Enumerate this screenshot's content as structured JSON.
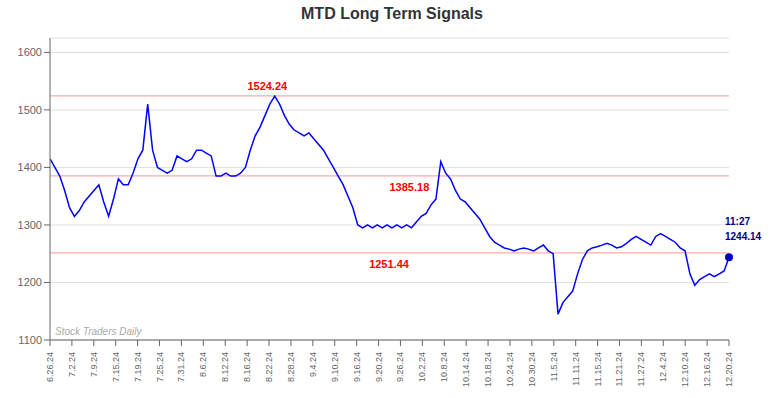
{
  "chart_data": {
    "type": "line",
    "title": "MTD Long Term Signals",
    "color": "blue",
    "grid": true,
    "x": [
      0,
      0.223,
      0.446,
      0.6691,
      0.8921,
      1.1151,
      1.3381,
      1.5612,
      1.7842,
      2.0072,
      2.2302,
      2.4532,
      2.6763,
      2.8993,
      3.1223,
      3.3453,
      3.5683,
      3.7914,
      4.0144,
      4.2374,
      4.4604,
      4.6835,
      4.9065,
      5.1295,
      5.3525,
      5.5755,
      5.7986,
      6.0216,
      6.2446,
      6.4676,
      6.6906,
      6.9137,
      7.1367,
      7.3597,
      7.5827,
      7.8058,
      8.0288,
      8.2518,
      8.4748,
      8.6978,
      8.9209,
      9.1439,
      9.3669,
      9.5899,
      9.8129,
      10.036,
      10.259,
      10.482,
      10.705,
      10.9281,
      11.1511,
      11.3741,
      11.5971,
      11.8201,
      12.0432,
      12.2662,
      12.4892,
      12.7122,
      12.9353,
      13.1583,
      13.3813,
      13.6043,
      13.8273,
      14.0504,
      14.2734,
      14.4964,
      14.7194,
      14.9424,
      15.1655,
      15.3885,
      15.6115,
      15.8345,
      16.0576,
      16.2806,
      16.5036,
      16.7266,
      16.9496,
      17.1727,
      17.3957,
      17.6187,
      17.8417,
      18.0647,
      18.2878,
      18.5108,
      18.7338,
      18.9568,
      19.1799,
      19.4029,
      19.6259,
      19.8489,
      20.0719,
      20.295,
      20.518,
      20.741,
      20.964,
      21.1871,
      21.4101,
      21.6331,
      21.8561,
      22.0791,
      22.3022,
      22.5252,
      22.7482,
      22.9712,
      23.1942,
      23.4173,
      23.6403,
      23.8633,
      24.0863,
      24.3094,
      24.5324,
      24.7554,
      24.9784,
      25.2014,
      25.4245,
      25.6475,
      25.8705,
      26.0935,
      26.3165,
      26.5396,
      26.7626,
      26.9856,
      27.2086,
      27.4317,
      27.6547,
      27.8777,
      28.1007,
      28.3237,
      28.5468,
      28.7698,
      28.9928,
      29.2158,
      29.4388,
      29.6619,
      29.8849,
      30.1079,
      30.3309,
      30.554,
      30.777,
      31
    ],
    "values": [
      1415,
      1400,
      1385,
      1360,
      1330,
      1315,
      1325,
      1340,
      1350,
      1360,
      1370,
      1340,
      1315,
      1345,
      1380,
      1370,
      1370,
      1390,
      1415,
      1430,
      1510,
      1430,
      1400,
      1395,
      1390,
      1395,
      1420,
      1415,
      1410,
      1415,
      1430,
      1430,
      1425,
      1420,
      1385,
      1385,
      1390,
      1385,
      1385,
      1390,
      1400,
      1430,
      1455,
      1470,
      1490,
      1510,
      1524,
      1510,
      1490,
      1475,
      1465,
      1460,
      1455,
      1460,
      1450,
      1440,
      1430,
      1415,
      1400,
      1385,
      1370,
      1350,
      1330,
      1300,
      1295,
      1300,
      1295,
      1300,
      1295,
      1300,
      1295,
      1300,
      1295,
      1300,
      1295,
      1305,
      1315,
      1320,
      1335,
      1345,
      1410,
      1390,
      1380,
      1360,
      1345,
      1340,
      1330,
      1320,
      1310,
      1295,
      1280,
      1270,
      1265,
      1260,
      1258,
      1255,
      1258,
      1260,
      1258,
      1255,
      1260,
      1265,
      1255,
      1250,
      1145,
      1165,
      1175,
      1185,
      1215,
      1240,
      1255,
      1260,
      1262,
      1265,
      1268,
      1265,
      1260,
      1262,
      1268,
      1275,
      1280,
      1275,
      1270,
      1265,
      1280,
      1285,
      1280,
      1275,
      1270,
      1260,
      1255,
      1215,
      1195,
      1205,
      1210,
      1215,
      1210,
      1215,
      1220,
      1244
    ],
    "xlim": [
      0,
      31
    ],
    "xticks": [
      {
        "value": 0,
        "label": "6.26.24"
      },
      {
        "value": 1,
        "label": "7.2.24"
      },
      {
        "value": 2,
        "label": "7.9.24"
      },
      {
        "value": 3,
        "label": "7.15.24"
      },
      {
        "value": 4,
        "label": "7.19.24"
      },
      {
        "value": 5,
        "label": "7.25.24"
      },
      {
        "value": 6,
        "label": "7.31.24"
      },
      {
        "value": 7,
        "label": "8.6.24"
      },
      {
        "value": 8,
        "label": "8.12.24"
      },
      {
        "value": 9,
        "label": "8.16.24"
      },
      {
        "value": 10,
        "label": "8.22.24"
      },
      {
        "value": 11,
        "label": "8.28.24"
      },
      {
        "value": 12,
        "label": "9.4.24"
      },
      {
        "value": 13,
        "label": "9.10.24"
      },
      {
        "value": 14,
        "label": "9.16.24"
      },
      {
        "value": 15,
        "label": "9.20.24"
      },
      {
        "value": 16,
        "label": "9.26.24"
      },
      {
        "value": 17,
        "label": "10.2.24"
      },
      {
        "value": 18,
        "label": "10.8.24"
      },
      {
        "value": 19,
        "label": "10.14.24"
      },
      {
        "value": 20,
        "label": "10.18.24"
      },
      {
        "value": 21,
        "label": "10.24.24"
      },
      {
        "value": 22,
        "label": "10.30.24"
      },
      {
        "value": 23,
        "label": "11.5.24"
      },
      {
        "value": 24,
        "label": "11.11.24"
      },
      {
        "value": 25,
        "label": "11.15.24"
      },
      {
        "value": 26,
        "label": "11.21.24"
      },
      {
        "value": 27,
        "label": "11.27.24"
      },
      {
        "value": 28,
        "label": "12.4.24"
      },
      {
        "value": 29,
        "label": "12.10.24"
      },
      {
        "value": 30,
        "label": "12.16.24"
      },
      {
        "value": 31,
        "label": "12.20.24"
      }
    ],
    "ylim": [
      1100,
      1625
    ],
    "yticks": [
      1100,
      1200,
      1300,
      1400,
      1500,
      1600
    ],
    "hlines": [
      {
        "value": 1524.24,
        "label": "1524.24",
        "color": "#ffaaaa",
        "label_color": "red"
      },
      {
        "value": 1385.18,
        "label": "1385.18",
        "color": "#ffaaaa",
        "label_color": "red"
      },
      {
        "value": 1251.44,
        "label": "1251.44",
        "color": "#ffaaaa",
        "label_color": "red"
      }
    ],
    "end_marker_color": "#0000cc",
    "end_labels": [
      "11:27",
      "1244.14"
    ],
    "end_label_color": "#000080",
    "watermark": "Stock Traders Daily",
    "watermark_color": "#aaaaaa"
  }
}
